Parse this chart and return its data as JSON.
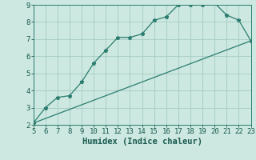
{
  "line1_x": [
    5,
    6,
    7,
    8,
    9,
    10,
    11,
    12,
    13,
    14,
    15,
    16,
    17,
    18,
    19,
    20,
    21,
    22,
    23
  ],
  "line1_y": [
    2.1,
    3.0,
    3.6,
    3.7,
    4.5,
    5.6,
    6.35,
    7.1,
    7.1,
    7.3,
    8.1,
    8.3,
    9.0,
    9.0,
    9.0,
    9.1,
    8.4,
    8.1,
    6.9
  ],
  "line2_x": [
    5,
    23
  ],
  "line2_y": [
    2.1,
    6.9
  ],
  "line_color": "#2a7d6f",
  "marker": "*",
  "marker_size": 3.5,
  "bg_color": "#cce8e0",
  "grid_color": "#aacfc7",
  "axis_color": "#2a7d6f",
  "text_color": "#1a5a50",
  "xlabel": "Humidex (Indice chaleur)",
  "xlim": [
    5,
    23
  ],
  "ylim": [
    2,
    9
  ],
  "xticks": [
    5,
    6,
    7,
    8,
    9,
    10,
    11,
    12,
    13,
    14,
    15,
    16,
    17,
    18,
    19,
    20,
    21,
    22,
    23
  ],
  "yticks": [
    2,
    3,
    4,
    5,
    6,
    7,
    8,
    9
  ],
  "tick_fontsize": 6.5,
  "xlabel_fontsize": 7.5,
  "linewidth": 0.9
}
